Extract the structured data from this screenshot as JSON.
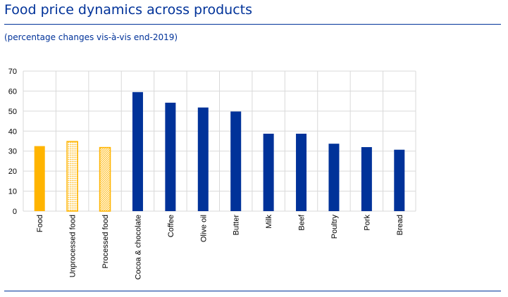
{
  "header": {
    "title": "Food price dynamics across products",
    "subtitle": "(percentage changes vis-à-vis end-2019)"
  },
  "colors": {
    "title": "#003299",
    "orange": "#FFB400",
    "blue": "#003299",
    "grid": "#D9D9D9"
  },
  "chart_data": {
    "type": "bar",
    "title": "Food price dynamics across products",
    "subtitle": "(percentage changes vis-à-vis end-2019)",
    "xlabel": "",
    "ylabel": "",
    "ylim": [
      0,
      70
    ],
    "yticks": [
      0,
      10,
      20,
      30,
      40,
      50,
      60,
      70
    ],
    "grid": true,
    "categories": [
      "Food",
      "Unprocessed food",
      "Processed food",
      "Cocoa & chocolate",
      "Coffee",
      "Olive oil",
      "Butter",
      "Milk",
      "Beef",
      "Poultry",
      "Pork",
      "Bread"
    ],
    "values": [
      32.5,
      34.8,
      31.8,
      59.5,
      54.2,
      51.8,
      49.8,
      38.7,
      38.7,
      33.7,
      32.0,
      30.7
    ],
    "bar_styles": [
      "solid-orange",
      "dotted-orange",
      "hatched-orange",
      "solid-blue",
      "solid-blue",
      "solid-blue",
      "solid-blue",
      "solid-blue",
      "solid-blue",
      "solid-blue",
      "solid-blue",
      "solid-blue"
    ]
  }
}
